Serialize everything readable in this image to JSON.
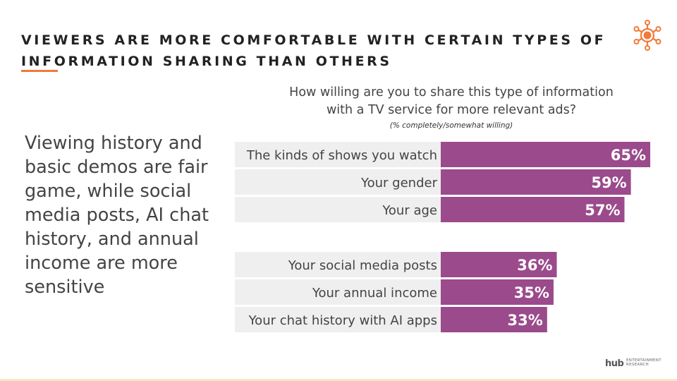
{
  "header": {
    "title": "VIEWERS ARE MORE COMFORTABLE WITH CERTAIN TYPES OF INFORMATION SHARING THAN OTHERS"
  },
  "side_text": "Viewing history and basic demos are fair game, while social media posts, AI chat history, and annual income are more sensitive",
  "question": {
    "line1": "How willing are you to share this type of information",
    "line2": "with a TV service for more relevant ads?",
    "note": "(% completely/somewhat willing)"
  },
  "chart_data": {
    "type": "bar",
    "orientation": "horizontal",
    "categories": [
      "The kinds of shows you watch",
      "Your gender",
      "Your age",
      "Your social media posts",
      "Your annual income",
      "Your chat history with AI apps"
    ],
    "values": [
      65,
      59,
      57,
      36,
      35,
      33
    ],
    "value_suffix": "%",
    "xlim": [
      0,
      100
    ],
    "bar_color": "#9b4a8c",
    "row_background": "#efefef",
    "grid": false,
    "legend": "none"
  },
  "footer": {
    "brand": "hub",
    "sub_line1": "ENTERTAINMENT",
    "sub_line2": "RESEARCH"
  },
  "colors": {
    "accent": "#f07a3a",
    "title": "#222222",
    "text": "#444444"
  },
  "icons": {
    "logo": "sun-network-icon"
  }
}
